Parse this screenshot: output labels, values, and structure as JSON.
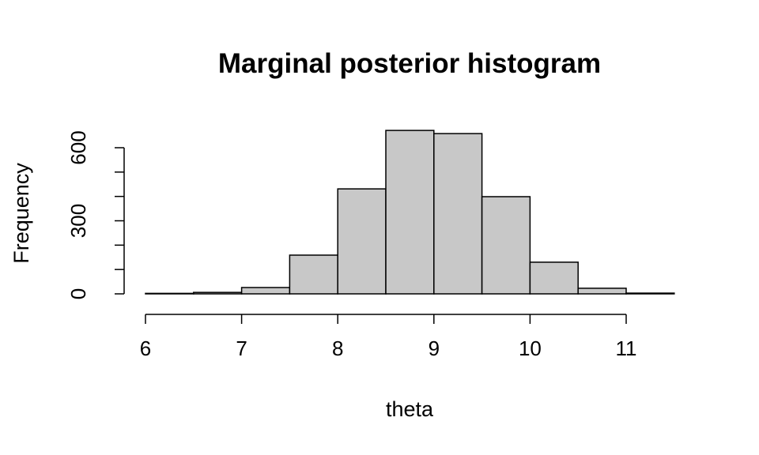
{
  "chart_data": {
    "type": "histogram",
    "title": "Marginal posterior histogram",
    "xlabel": "theta",
    "ylabel": "Frequency",
    "bins": [
      6,
      6.5,
      7,
      7.5,
      8,
      8.5,
      9,
      9.5,
      10,
      10.5,
      11,
      11.5
    ],
    "values": [
      2,
      6,
      26,
      159,
      431,
      671,
      658,
      399,
      130,
      23,
      3
    ],
    "color": "#c8c8c8",
    "xlim": [
      6,
      11.5
    ],
    "xticks": [
      6,
      7,
      8,
      9,
      10,
      11
    ],
    "ylim": [
      0,
      600
    ],
    "yticks": [
      0,
      300,
      600
    ],
    "yminorticks": [
      100,
      200,
      400,
      500
    ]
  }
}
